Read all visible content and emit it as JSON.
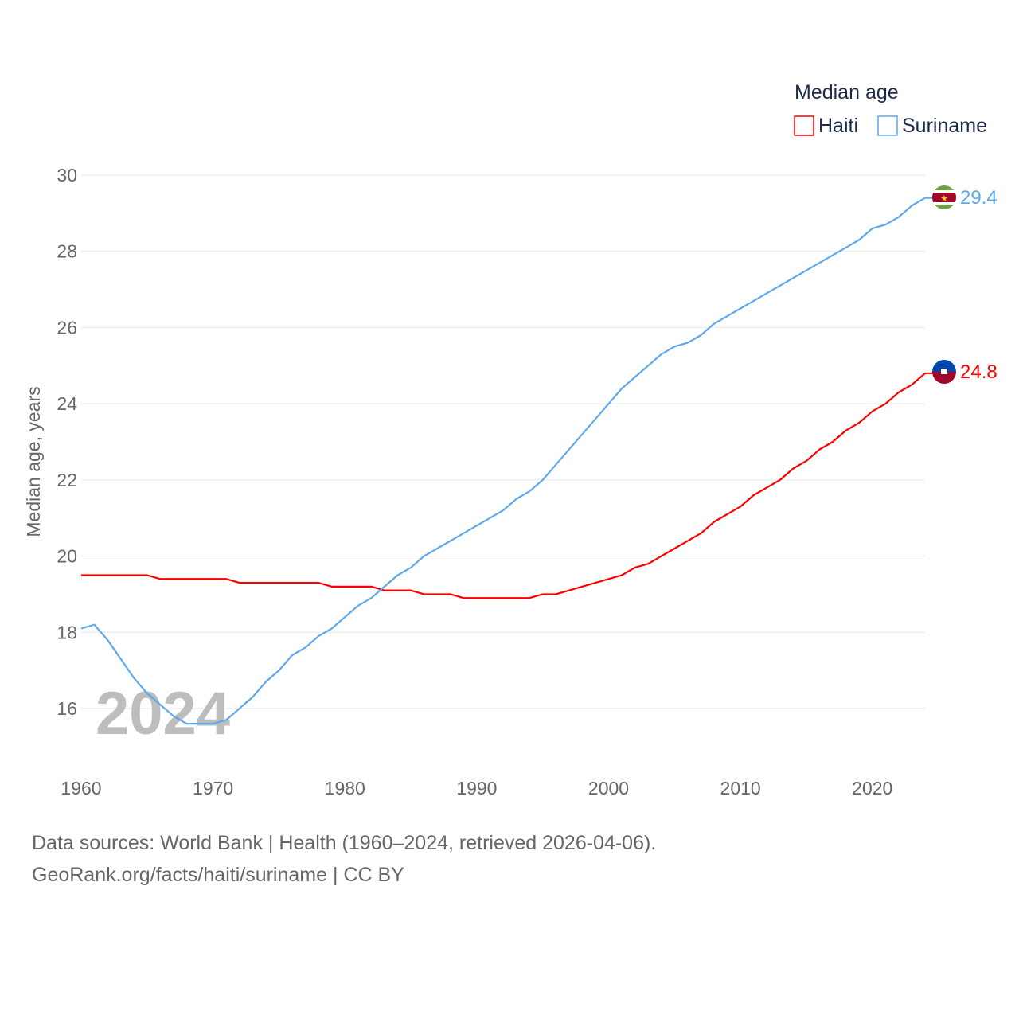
{
  "chart_data": {
    "type": "line",
    "title": "Median age",
    "ylabel": "Median age, years",
    "xlabel": "",
    "xlim": [
      1960,
      2024
    ],
    "ylim": [
      16,
      30
    ],
    "yticks": [
      16,
      18,
      20,
      22,
      24,
      26,
      28,
      30
    ],
    "xticks": [
      1960,
      1970,
      1980,
      1990,
      2000,
      2010,
      2020
    ],
    "grid": true,
    "legend_placement": "top-right",
    "watermark_year": "2024",
    "x": [
      1960,
      1961,
      1962,
      1963,
      1964,
      1965,
      1966,
      1967,
      1968,
      1969,
      1970,
      1971,
      1972,
      1973,
      1974,
      1975,
      1976,
      1977,
      1978,
      1979,
      1980,
      1981,
      1982,
      1983,
      1984,
      1985,
      1986,
      1987,
      1988,
      1989,
      1990,
      1991,
      1992,
      1993,
      1994,
      1995,
      1996,
      1997,
      1998,
      1999,
      2000,
      2001,
      2002,
      2003,
      2004,
      2005,
      2006,
      2007,
      2008,
      2009,
      2010,
      2011,
      2012,
      2013,
      2014,
      2015,
      2016,
      2017,
      2018,
      2019,
      2020,
      2021,
      2022,
      2023,
      2024
    ],
    "series": [
      {
        "name": "Haiti",
        "color": "#ff0000",
        "end_label": "24.8",
        "flag": "haiti-flag",
        "values": [
          19.5,
          19.5,
          19.5,
          19.5,
          19.5,
          19.5,
          19.4,
          19.4,
          19.4,
          19.4,
          19.4,
          19.4,
          19.3,
          19.3,
          19.3,
          19.3,
          19.3,
          19.3,
          19.3,
          19.2,
          19.2,
          19.2,
          19.2,
          19.1,
          19.1,
          19.1,
          19.0,
          19.0,
          19.0,
          18.9,
          18.9,
          18.9,
          18.9,
          18.9,
          18.9,
          19.0,
          19.0,
          19.1,
          19.2,
          19.3,
          19.4,
          19.5,
          19.7,
          19.8,
          20.0,
          20.2,
          20.4,
          20.6,
          20.9,
          21.1,
          21.3,
          21.6,
          21.8,
          22.0,
          22.3,
          22.5,
          22.8,
          23.0,
          23.3,
          23.5,
          23.8,
          24.0,
          24.3,
          24.5,
          24.8
        ]
      },
      {
        "name": "Suriname",
        "color": "#5ea8ec",
        "end_label": "29.4",
        "flag": "suriname-flag",
        "values": [
          18.1,
          18.2,
          17.8,
          17.3,
          16.8,
          16.4,
          16.1,
          15.8,
          15.6,
          15.6,
          15.6,
          15.7,
          16.0,
          16.3,
          16.7,
          17.0,
          17.4,
          17.6,
          17.9,
          18.1,
          18.4,
          18.7,
          18.9,
          19.2,
          19.5,
          19.7,
          20.0,
          20.2,
          20.4,
          20.6,
          20.8,
          21.0,
          21.2,
          21.5,
          21.7,
          22.0,
          22.4,
          22.8,
          23.2,
          23.6,
          24.0,
          24.4,
          24.7,
          25.0,
          25.3,
          25.5,
          25.6,
          25.8,
          26.1,
          26.3,
          26.5,
          26.7,
          26.9,
          27.1,
          27.3,
          27.5,
          27.7,
          27.9,
          28.1,
          28.3,
          28.6,
          28.7,
          28.9,
          29.2,
          29.4
        ]
      }
    ]
  },
  "footer": {
    "line1": "Data sources: World Bank | Health (1960–2024, retrieved 2026-04-06).",
    "line2": "GeoRank.org/facts/haiti/suriname | CC BY"
  }
}
